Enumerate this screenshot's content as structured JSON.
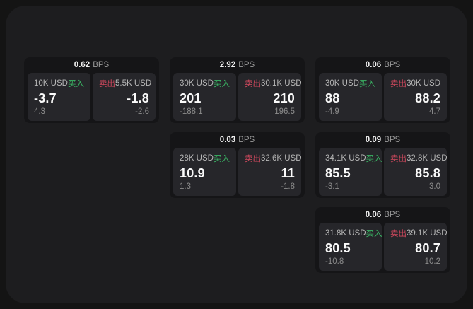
{
  "labels": {
    "buy": "买入",
    "sell": "卖出",
    "bps_unit": "BPS"
  },
  "colors": {
    "buy_green": "#3ab564",
    "sell_red": "#d4495e",
    "panel_bg": "#1d1d1f",
    "card_bg": "#151517",
    "subcard_bg": "#26262a"
  },
  "cards": [
    {
      "bps": "0.62",
      "buy": {
        "amount": "10K USD",
        "value": "-3.7",
        "delta": "4.3"
      },
      "sell": {
        "amount": "5.5K USD",
        "value": "-1.8",
        "delta": "-2.6"
      }
    },
    {
      "bps": "2.92",
      "buy": {
        "amount": "30K USD",
        "value": "201",
        "delta": "-188.1"
      },
      "sell": {
        "amount": "30.1K USD",
        "value": "210",
        "delta": "196.5"
      }
    },
    {
      "bps": "0.06",
      "buy": {
        "amount": "30K USD",
        "value": "88",
        "delta": "-4.9"
      },
      "sell": {
        "amount": "30K USD",
        "value": "88.2",
        "delta": "4.7"
      }
    },
    {
      "bps": "0.03",
      "buy": {
        "amount": "28K USD",
        "value": "10.9",
        "delta": "1.3"
      },
      "sell": {
        "amount": "32.6K USD",
        "value": "11",
        "delta": "-1.8"
      }
    },
    {
      "bps": "0.09",
      "buy": {
        "amount": "34.1K USD",
        "value": "85.5",
        "delta": "-3.1"
      },
      "sell": {
        "amount": "32.8K USD",
        "value": "85.8",
        "delta": "3.0"
      }
    },
    {
      "bps": "0.06",
      "buy": {
        "amount": "31.8K USD",
        "value": "80.5",
        "delta": "-10.8"
      },
      "sell": {
        "amount": "39.1K USD",
        "value": "80.7",
        "delta": "10.2"
      }
    }
  ]
}
